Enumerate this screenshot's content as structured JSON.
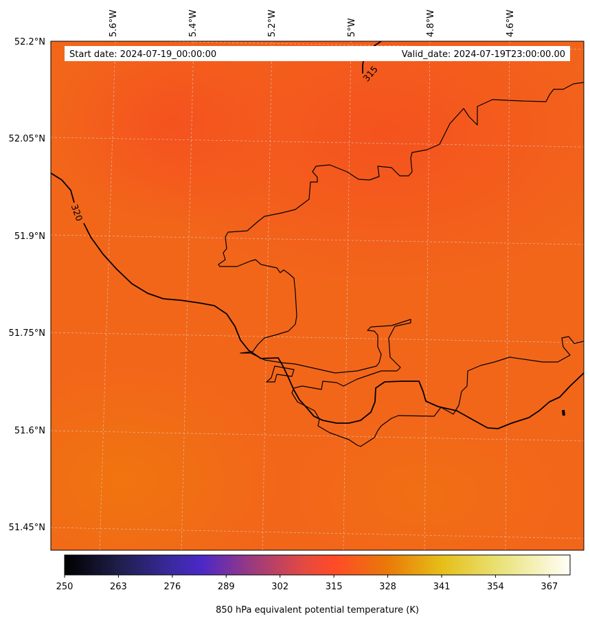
{
  "map": {
    "start_text": "Start date: 2024-07-19_00:00:00",
    "valid_text": "Valid_date: 2024-07-19T23:00:00.00",
    "lon_labels": [
      "5.6°W",
      "5.4°W",
      "5.2°W",
      "5°W",
      "4.8°W",
      "4.6°W"
    ],
    "lat_labels": [
      "52.2°N",
      "52.05°N",
      "51.9°N",
      "51.75°N",
      "51.6°N",
      "51.45°N"
    ],
    "contour_labels": [
      "320",
      "315"
    ],
    "field_colors": {
      "dominant": "#F2661A",
      "north": "#F5541F",
      "south": "#F07012",
      "coastline": "#000000",
      "contour": "#000000",
      "grid": "#D8D8D8"
    }
  },
  "colorbar": {
    "label": "850 hPa equivalent potential temperature (K)",
    "ticks": [
      "250",
      "263",
      "276",
      "289",
      "302",
      "315",
      "328",
      "341",
      "354",
      "367"
    ],
    "min": 250,
    "max": 372,
    "colormap": [
      {
        "value": 250,
        "color": "#000000"
      },
      {
        "value": 263,
        "color": "#1E1E4A"
      },
      {
        "value": 276,
        "color": "#3A2AA0"
      },
      {
        "value": 283,
        "color": "#4B28C8"
      },
      {
        "value": 295,
        "color": "#9A3A80"
      },
      {
        "value": 308,
        "color": "#E54A40"
      },
      {
        "value": 315,
        "color": "#FF4A28"
      },
      {
        "value": 328,
        "color": "#E97A08"
      },
      {
        "value": 341,
        "color": "#E6BE18"
      },
      {
        "value": 354,
        "color": "#E8E070"
      },
      {
        "value": 372,
        "color": "#FFFFF8"
      }
    ]
  }
}
